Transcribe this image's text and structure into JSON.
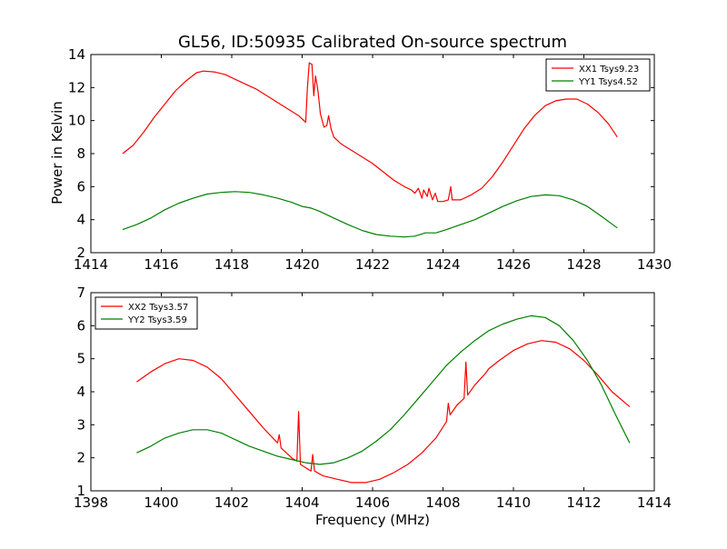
{
  "figure": {
    "title": "GL56, ID:50935 Calibrated On-source spectrum",
    "ylabel": "Power in Kelvin",
    "xlabel": "Frequency (MHz)"
  },
  "chart_data": [
    {
      "type": "line",
      "title": "GL56, ID:50935 Calibrated On-source spectrum",
      "ylabel": "Power in Kelvin",
      "xlabel": "",
      "xlim": [
        1414,
        1430
      ],
      "ylim": [
        2,
        14
      ],
      "xticks": [
        1414,
        1416,
        1418,
        1420,
        1422,
        1424,
        1426,
        1428,
        1430
      ],
      "yticks": [
        2,
        4,
        6,
        8,
        10,
        12,
        14
      ],
      "grid": false,
      "legend_position": "top-right",
      "series": [
        {
          "name": "XX1 Tsys9.23",
          "color": "#ff0000",
          "points": [
            [
              1414.9,
              8.0
            ],
            [
              1415.2,
              8.5
            ],
            [
              1415.5,
              9.3
            ],
            [
              1415.8,
              10.2
            ],
            [
              1416.1,
              11.0
            ],
            [
              1416.4,
              11.8
            ],
            [
              1416.7,
              12.4
            ],
            [
              1417.0,
              12.9
            ],
            [
              1417.2,
              13.0
            ],
            [
              1417.5,
              12.95
            ],
            [
              1417.8,
              12.8
            ],
            [
              1418.1,
              12.5
            ],
            [
              1418.4,
              12.2
            ],
            [
              1418.7,
              11.9
            ],
            [
              1419.0,
              11.5
            ],
            [
              1419.3,
              11.1
            ],
            [
              1419.6,
              10.7
            ],
            [
              1419.9,
              10.3
            ],
            [
              1420.1,
              9.9
            ],
            [
              1420.15,
              12.0
            ],
            [
              1420.2,
              13.5
            ],
            [
              1420.28,
              13.4
            ],
            [
              1420.33,
              11.5
            ],
            [
              1420.38,
              12.7
            ],
            [
              1420.45,
              11.8
            ],
            [
              1420.52,
              10.4
            ],
            [
              1420.62,
              9.6
            ],
            [
              1420.7,
              9.7
            ],
            [
              1420.75,
              10.3
            ],
            [
              1420.82,
              9.5
            ],
            [
              1420.9,
              9.0
            ],
            [
              1421.1,
              8.6
            ],
            [
              1421.4,
              8.2
            ],
            [
              1421.7,
              7.8
            ],
            [
              1422.0,
              7.4
            ],
            [
              1422.3,
              6.9
            ],
            [
              1422.6,
              6.4
            ],
            [
              1422.9,
              6.0
            ],
            [
              1423.1,
              5.8
            ],
            [
              1423.2,
              5.6
            ],
            [
              1423.3,
              5.9
            ],
            [
              1423.4,
              5.3
            ],
            [
              1423.45,
              5.8
            ],
            [
              1423.55,
              5.4
            ],
            [
              1423.6,
              5.9
            ],
            [
              1423.7,
              5.2
            ],
            [
              1423.78,
              5.6
            ],
            [
              1423.85,
              5.1
            ],
            [
              1424.0,
              5.1
            ],
            [
              1424.15,
              5.2
            ],
            [
              1424.22,
              6.0
            ],
            [
              1424.26,
              5.2
            ],
            [
              1424.5,
              5.2
            ],
            [
              1424.8,
              5.5
            ],
            [
              1425.1,
              5.9
            ],
            [
              1425.4,
              6.6
            ],
            [
              1425.7,
              7.5
            ],
            [
              1426.0,
              8.5
            ],
            [
              1426.3,
              9.5
            ],
            [
              1426.6,
              10.3
            ],
            [
              1426.9,
              10.9
            ],
            [
              1427.2,
              11.2
            ],
            [
              1427.5,
              11.3
            ],
            [
              1427.8,
              11.3
            ],
            [
              1428.1,
              11.0
            ],
            [
              1428.4,
              10.5
            ],
            [
              1428.7,
              9.8
            ],
            [
              1428.95,
              9.0
            ]
          ]
        },
        {
          "name": "YY1 Tsys4.52",
          "color": "#008000",
          "points": [
            [
              1414.9,
              3.4
            ],
            [
              1415.3,
              3.7
            ],
            [
              1415.7,
              4.1
            ],
            [
              1416.1,
              4.6
            ],
            [
              1416.5,
              5.0
            ],
            [
              1416.9,
              5.3
            ],
            [
              1417.3,
              5.55
            ],
            [
              1417.7,
              5.65
            ],
            [
              1418.1,
              5.7
            ],
            [
              1418.5,
              5.65
            ],
            [
              1418.9,
              5.5
            ],
            [
              1419.3,
              5.3
            ],
            [
              1419.7,
              5.05
            ],
            [
              1420.0,
              4.8
            ],
            [
              1420.25,
              4.7
            ],
            [
              1420.5,
              4.5
            ],
            [
              1420.9,
              4.1
            ],
            [
              1421.3,
              3.7
            ],
            [
              1421.7,
              3.35
            ],
            [
              1422.1,
              3.1
            ],
            [
              1422.5,
              3.0
            ],
            [
              1422.9,
              2.95
            ],
            [
              1423.2,
              3.0
            ],
            [
              1423.5,
              3.2
            ],
            [
              1423.8,
              3.2
            ],
            [
              1424.1,
              3.4
            ],
            [
              1424.5,
              3.7
            ],
            [
              1424.9,
              4.0
            ],
            [
              1425.3,
              4.4
            ],
            [
              1425.7,
              4.8
            ],
            [
              1426.1,
              5.15
            ],
            [
              1426.5,
              5.4
            ],
            [
              1426.9,
              5.5
            ],
            [
              1427.3,
              5.45
            ],
            [
              1427.7,
              5.2
            ],
            [
              1428.1,
              4.8
            ],
            [
              1428.5,
              4.2
            ],
            [
              1428.95,
              3.5
            ]
          ]
        }
      ]
    },
    {
      "type": "line",
      "title": "",
      "ylabel": "",
      "xlabel": "Frequency (MHz)",
      "xlim": [
        1398,
        1414
      ],
      "ylim": [
        1,
        7
      ],
      "xticks": [
        1398,
        1400,
        1402,
        1404,
        1406,
        1408,
        1410,
        1412,
        1414
      ],
      "yticks": [
        1,
        2,
        3,
        4,
        5,
        6,
        7
      ],
      "grid": false,
      "legend_position": "top-left",
      "series": [
        {
          "name": "XX2 Tsys3.57",
          "color": "#ff0000",
          "points": [
            [
              1399.3,
              4.3
            ],
            [
              1399.7,
              4.6
            ],
            [
              1400.1,
              4.85
            ],
            [
              1400.5,
              5.0
            ],
            [
              1400.9,
              4.95
            ],
            [
              1401.3,
              4.75
            ],
            [
              1401.7,
              4.4
            ],
            [
              1402.1,
              3.9
            ],
            [
              1402.5,
              3.4
            ],
            [
              1402.9,
              2.9
            ],
            [
              1403.3,
              2.45
            ],
            [
              1403.35,
              2.7
            ],
            [
              1403.4,
              2.3
            ],
            [
              1403.7,
              2.0
            ],
            [
              1403.85,
              1.9
            ],
            [
              1403.9,
              3.4
            ],
            [
              1403.95,
              1.8
            ],
            [
              1404.1,
              1.7
            ],
            [
              1404.25,
              1.6
            ],
            [
              1404.3,
              2.1
            ],
            [
              1404.35,
              1.6
            ],
            [
              1404.6,
              1.45
            ],
            [
              1405.0,
              1.35
            ],
            [
              1405.4,
              1.25
            ],
            [
              1405.8,
              1.25
            ],
            [
              1406.2,
              1.35
            ],
            [
              1406.6,
              1.55
            ],
            [
              1407.0,
              1.8
            ],
            [
              1407.4,
              2.15
            ],
            [
              1407.8,
              2.6
            ],
            [
              1408.1,
              3.1
            ],
            [
              1408.15,
              3.65
            ],
            [
              1408.2,
              3.3
            ],
            [
              1408.4,
              3.6
            ],
            [
              1408.6,
              3.8
            ],
            [
              1408.65,
              4.9
            ],
            [
              1408.7,
              3.9
            ],
            [
              1408.9,
              4.2
            ],
            [
              1409.2,
              4.55
            ],
            [
              1409.3,
              4.7
            ],
            [
              1409.6,
              4.95
            ],
            [
              1410.0,
              5.25
            ],
            [
              1410.4,
              5.45
            ],
            [
              1410.8,
              5.55
            ],
            [
              1411.2,
              5.5
            ],
            [
              1411.6,
              5.3
            ],
            [
              1412.0,
              4.95
            ],
            [
              1412.4,
              4.5
            ],
            [
              1412.8,
              4.0
            ],
            [
              1413.3,
              3.55
            ]
          ]
        },
        {
          "name": "YY2 Tsys3.59",
          "color": "#008000",
          "points": [
            [
              1399.3,
              2.15
            ],
            [
              1399.7,
              2.35
            ],
            [
              1400.1,
              2.6
            ],
            [
              1400.5,
              2.75
            ],
            [
              1400.9,
              2.85
            ],
            [
              1401.3,
              2.85
            ],
            [
              1401.7,
              2.75
            ],
            [
              1402.1,
              2.55
            ],
            [
              1402.5,
              2.35
            ],
            [
              1402.9,
              2.2
            ],
            [
              1403.3,
              2.05
            ],
            [
              1403.7,
              1.95
            ],
            [
              1404.1,
              1.85
            ],
            [
              1404.5,
              1.8
            ],
            [
              1404.9,
              1.85
            ],
            [
              1405.3,
              2.0
            ],
            [
              1405.7,
              2.2
            ],
            [
              1406.1,
              2.5
            ],
            [
              1406.5,
              2.85
            ],
            [
              1406.9,
              3.3
            ],
            [
              1407.3,
              3.8
            ],
            [
              1407.7,
              4.3
            ],
            [
              1408.1,
              4.8
            ],
            [
              1408.5,
              5.2
            ],
            [
              1408.9,
              5.55
            ],
            [
              1409.3,
              5.85
            ],
            [
              1409.7,
              6.05
            ],
            [
              1410.1,
              6.2
            ],
            [
              1410.5,
              6.3
            ],
            [
              1410.9,
              6.25
            ],
            [
              1411.3,
              6.0
            ],
            [
              1411.7,
              5.55
            ],
            [
              1412.1,
              4.95
            ],
            [
              1412.5,
              4.2
            ],
            [
              1412.9,
              3.3
            ],
            [
              1413.3,
              2.45
            ]
          ]
        }
      ]
    }
  ]
}
